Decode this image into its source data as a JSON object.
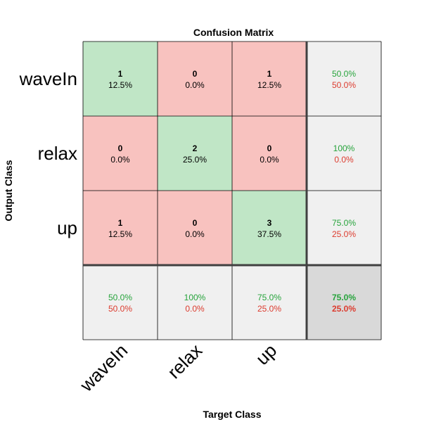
{
  "chart_data": {
    "type": "heatmap",
    "title": "Confusion Matrix",
    "xlabel": "Target Class",
    "ylabel": "Output Class",
    "classes": [
      "waveIn",
      "relax",
      "up"
    ],
    "matrix": [
      {
        "count": "1",
        "pct": "12.5%"
      },
      {
        "count": "0",
        "pct": "0.0%"
      },
      {
        "count": "1",
        "pct": "12.5%"
      },
      {
        "count": "0",
        "pct": "0.0%"
      },
      {
        "count": "2",
        "pct": "25.0%"
      },
      {
        "count": "0",
        "pct": "0.0%"
      },
      {
        "count": "1",
        "pct": "12.5%"
      },
      {
        "count": "0",
        "pct": "0.0%"
      },
      {
        "count": "3",
        "pct": "37.5%"
      }
    ],
    "row_summary": [
      {
        "correct": "50.0%",
        "incorrect": "50.0%"
      },
      {
        "correct": "100%",
        "incorrect": "0.0%"
      },
      {
        "correct": "75.0%",
        "incorrect": "25.0%"
      }
    ],
    "col_summary": [
      {
        "correct": "50.0%",
        "incorrect": "50.0%"
      },
      {
        "correct": "100%",
        "incorrect": "0.0%"
      },
      {
        "correct": "75.0%",
        "incorrect": "25.0%"
      }
    ],
    "overall": {
      "correct": "75.0%",
      "incorrect": "25.0%"
    },
    "colors": {
      "diagonal": "#c0e6c6",
      "off_diagonal": "#f8c2bf",
      "summary": "#f0f0f0",
      "overall": "#d9d9d9",
      "correct_text": "#26a33b",
      "incorrect_text": "#dc3b2e"
    }
  }
}
